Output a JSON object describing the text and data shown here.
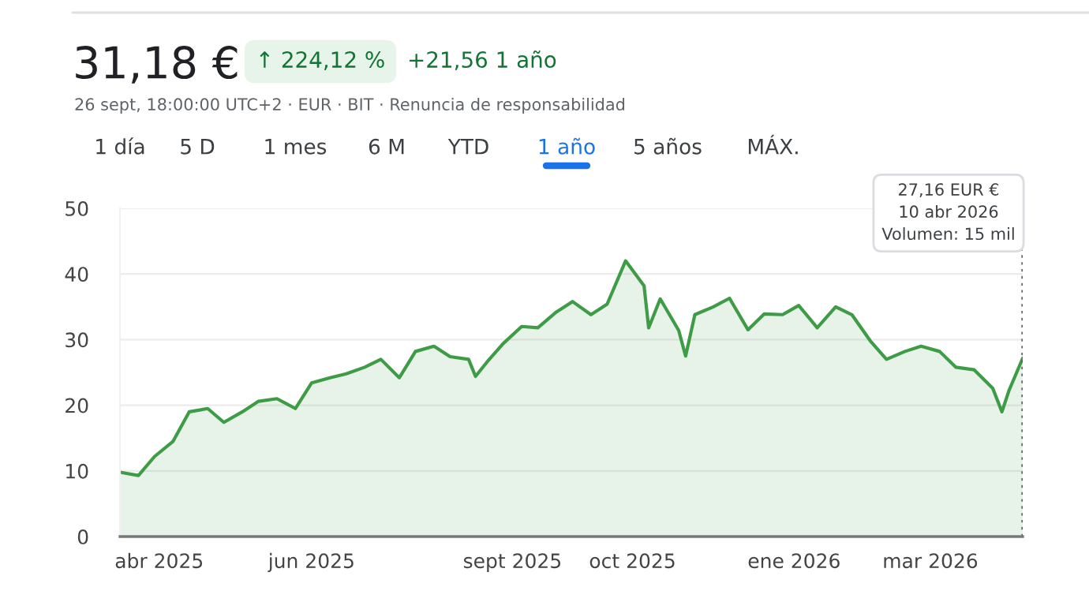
{
  "chart_data": {
    "type": "area",
    "title": "31,18 €",
    "subtitle": "26 sept, 18:00:00 UTC+2 · EUR · BIT · Renuncia de responsabilidad",
    "x": [
      "2025-03-15",
      "2025-03-23",
      "2025-03-30",
      "2025-04-07",
      "2025-04-14",
      "2025-04-22",
      "2025-04-29",
      "2025-05-07",
      "2025-05-14",
      "2025-05-22",
      "2025-05-30",
      "2025-06-06",
      "2025-06-14",
      "2025-06-21",
      "2025-06-29",
      "2025-07-06",
      "2025-07-14",
      "2025-07-21",
      "2025-07-29",
      "2025-08-05",
      "2025-08-13",
      "2025-08-16",
      "2025-08-21",
      "2025-08-28",
      "2025-09-05",
      "2025-09-12",
      "2025-09-20",
      "2025-09-27",
      "2025-10-05",
      "2025-10-12",
      "2025-10-20",
      "2025-10-28",
      "2025-10-30",
      "2025-11-04",
      "2025-11-12",
      "2025-11-15",
      "2025-11-19",
      "2025-11-27",
      "2025-12-04",
      "2025-12-12",
      "2025-12-19",
      "2025-12-27",
      "2026-01-03",
      "2026-01-11",
      "2026-01-19",
      "2026-01-26",
      "2026-02-03",
      "2026-02-10",
      "2026-02-18",
      "2026-02-25",
      "2026-03-05",
      "2026-03-12",
      "2026-03-20",
      "2026-03-28",
      "2026-04-01",
      "2026-04-04",
      "2026-04-10"
    ],
    "series": [
      {
        "color": "#3d9c45",
        "values": [
          9.8,
          9.3,
          12.2,
          14.5,
          19.0,
          19.5,
          17.4,
          19.0,
          20.6,
          21.0,
          19.5,
          23.4,
          24.2,
          24.8,
          25.8,
          27.0,
          24.2,
          28.2,
          29.0,
          27.4,
          27.0,
          24.4,
          26.6,
          29.4,
          32.0,
          31.8,
          34.2,
          35.8,
          33.8,
          35.4,
          42.0,
          38.2,
          31.8,
          36.2,
          31.4,
          27.5,
          33.8,
          35.0,
          36.3,
          31.5,
          33.9,
          33.8,
          35.2,
          31.8,
          35.0,
          33.8,
          29.8,
          27.0,
          28.2,
          29.0,
          28.2,
          25.8,
          25.4,
          22.6,
          19.0,
          22.2,
          27.16
        ]
      }
    ],
    "xlim": [
      "2025-03-15",
      "2026-04-10"
    ],
    "xticks": [
      {
        "value": "2025-04-01",
        "label": "abr 2025"
      },
      {
        "value": "2025-06-06",
        "label": "jun 2025"
      },
      {
        "value": "2025-09-01",
        "label": "sept 2025"
      },
      {
        "value": "2025-10-23",
        "label": "oct 2025"
      },
      {
        "value": "2026-01-01",
        "label": "ene 2026"
      },
      {
        "value": "2026-03-01",
        "label": "mar 2026"
      }
    ],
    "ylim": [
      0,
      50
    ],
    "yticks": [
      0,
      10,
      20,
      30,
      40,
      50
    ],
    "grid": "y",
    "ref_lines": [
      {
        "axis": "x",
        "value": "2026-04-10",
        "line_style": "dotted",
        "color": "#5f6368"
      }
    ],
    "annotations": [
      "↑ 224,12 %",
      "+21,56 1 año",
      "1 día",
      "5 D",
      "1 mes",
      "6 M",
      "YTD",
      "1 año",
      "5 años",
      "MÁX.",
      "27,16 EUR €\n10 abr 2026\nVolumen: 15 mil"
    ]
  }
}
